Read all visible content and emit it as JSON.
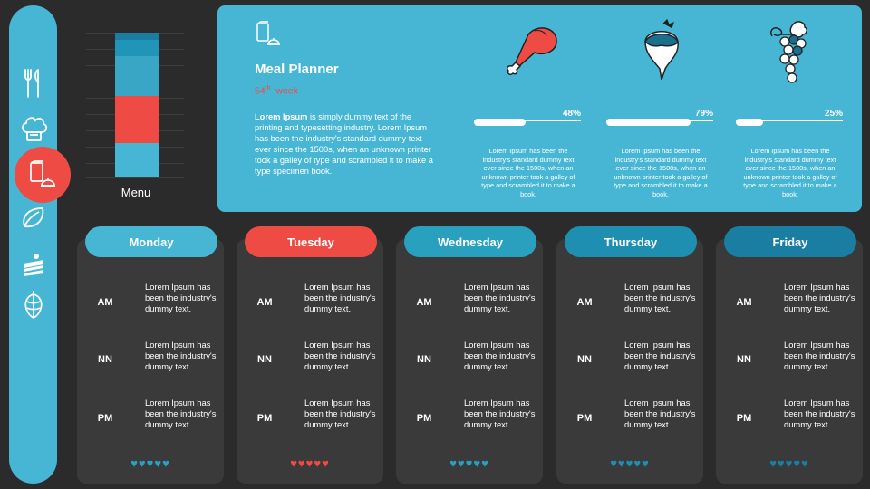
{
  "colors": {
    "background": "#2b2b2b",
    "panel": "#47b6d4",
    "accent_red": "#ef4b45",
    "card": "#3a3a3a"
  },
  "sidebar": {
    "items": [
      {
        "icon": "fork-knife-icon"
      },
      {
        "icon": "chef-hat-icon"
      },
      {
        "icon": "meal-planner-icon",
        "active": true
      },
      {
        "icon": "leaf-icon"
      },
      {
        "icon": "cake-slice-icon"
      },
      {
        "icon": "hops-icon"
      }
    ]
  },
  "menu_widget": {
    "label": "Menu",
    "segments": [
      {
        "color": "#1a7ea3",
        "fraction": 0.05
      },
      {
        "color": "#2095b8",
        "fraction": 0.11
      },
      {
        "color": "#3aa6c6",
        "fraction": 0.28
      },
      {
        "color": "#ef4b45",
        "fraction": 0.32
      },
      {
        "color": "#47b6d4",
        "fraction": 0.24
      }
    ]
  },
  "planner": {
    "title": "Meal Planner",
    "week_number": "54",
    "week_suffix": "th",
    "week_label": "week",
    "desc_bold": "Lorem Ipsum",
    "desc_rest": " is simply dummy text of the printing and typesetting industry. Lorem Ipsum has been the industry's standard dummy text ever since the 1500s, when an unknown printer took a galley of type and scrambled it to make a type specimen book."
  },
  "foods": [
    {
      "icon": "chicken-leg-icon",
      "percent_label": "48%",
      "percent": 48,
      "desc": "Lorem Ipsum has been the industry's standard dummy text ever since the 1500s, when an unknown printer took a galley of type and scrambled it to make a book."
    },
    {
      "icon": "turnip-icon",
      "percent_label": "79%",
      "percent": 79,
      "desc": "Lorem Ipsum has been the industry's standard dummy text ever since the 1500s, when an unknown printer took a galley of type and scrambled it to make a book."
    },
    {
      "icon": "grapes-icon",
      "percent_label": "25%",
      "percent": 25,
      "desc": "Lorem Ipsum has been the industry's standard dummy text ever since the 1500s, when an unknown printer took a galley of type and scrambled it to make a book."
    }
  ],
  "days": [
    {
      "name": "Monday",
      "pill_color": "#47b6d4",
      "heart_color": "#2aa0bf",
      "slots": [
        {
          "label": "AM",
          "text": "Lorem Ipsum has been the industry's dummy text."
        },
        {
          "label": "NN",
          "text": "Lorem Ipsum has been the industry's dummy text."
        },
        {
          "label": "PM",
          "text": "Lorem Ipsum has been the industry's dummy text."
        }
      ],
      "hearts": "♥♥♥♥♥",
      "rating": 5
    },
    {
      "name": "Tuesday",
      "pill_color": "#ef4b45",
      "heart_color": "#ef4b45",
      "slots": [
        {
          "label": "AM",
          "text": "Lorem Ipsum has been the industry's dummy text."
        },
        {
          "label": "NN",
          "text": "Lorem Ipsum has been the industry's dummy text."
        },
        {
          "label": "PM",
          "text": "Lorem Ipsum has been the industry's dummy text."
        }
      ],
      "hearts": "♥♥♥♥♥",
      "rating": 5
    },
    {
      "name": "Wednesday",
      "pill_color": "#2aa0bf",
      "heart_color": "#2aa0bf",
      "slots": [
        {
          "label": "AM",
          "text": "Lorem Ipsum has been the industry's dummy text."
        },
        {
          "label": "NN",
          "text": "Lorem Ipsum has been the industry's dummy text."
        },
        {
          "label": "PM",
          "text": "Lorem Ipsum has been the industry's dummy text."
        }
      ],
      "hearts": "♥♥♥♥♥",
      "rating": 5
    },
    {
      "name": "Thursday",
      "pill_color": "#1f8fb1",
      "heart_color": "#1f8fb1",
      "slots": [
        {
          "label": "AM",
          "text": "Lorem Ipsum has been the industry's dummy text."
        },
        {
          "label": "NN",
          "text": "Lorem Ipsum has been the industry's dummy text."
        },
        {
          "label": "PM",
          "text": "Lorem Ipsum has been the industry's dummy text."
        }
      ],
      "hearts": "♥♥♥♥♥",
      "rating": 5
    },
    {
      "name": "Friday",
      "pill_color": "#1a7ea3",
      "heart_color": "#1a7ea3",
      "slots": [
        {
          "label": "AM",
          "text": "Lorem Ipsum has been the industry's dummy text."
        },
        {
          "label": "NN",
          "text": "Lorem Ipsum has been the industry's dummy text."
        },
        {
          "label": "PM",
          "text": "Lorem Ipsum has been the industry's dummy text."
        }
      ],
      "hearts": "♥♥♥♥♥",
      "rating": 5
    }
  ]
}
